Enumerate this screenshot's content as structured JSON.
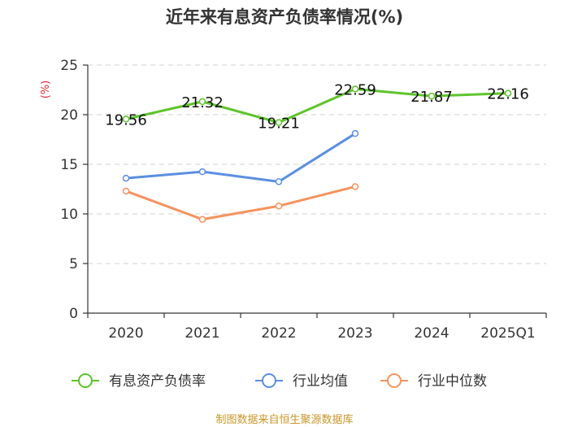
{
  "chart_data": {
    "type": "line",
    "title": "近年来有息资产负债率情况(%)",
    "ylabel": "(%)",
    "xlabel": "",
    "categories": [
      "2020",
      "2021",
      "2022",
      "2023",
      "2024",
      "2025Q1"
    ],
    "ylim": [
      0,
      25
    ],
    "yticks": [
      0,
      5,
      10,
      15,
      20,
      25
    ],
    "grid": true,
    "legend_position": "bottom",
    "series": [
      {
        "name": "有息资产负债率",
        "color": "#5ec42a",
        "values": [
          19.56,
          21.32,
          19.21,
          22.59,
          21.87,
          22.16
        ],
        "labels": [
          "19.56",
          "21.32",
          "19.21",
          "22.59",
          "21.87",
          "22.16"
        ]
      },
      {
        "name": "行业均值",
        "color": "#5b8fe0",
        "values": [
          13.6,
          14.25,
          13.25,
          18.1,
          null,
          null
        ]
      },
      {
        "name": "行业中位数",
        "color": "#f5935e",
        "values": [
          12.3,
          9.45,
          10.8,
          12.75,
          null,
          null
        ]
      }
    ],
    "source": "制图数据来自恒生聚源数据库"
  }
}
